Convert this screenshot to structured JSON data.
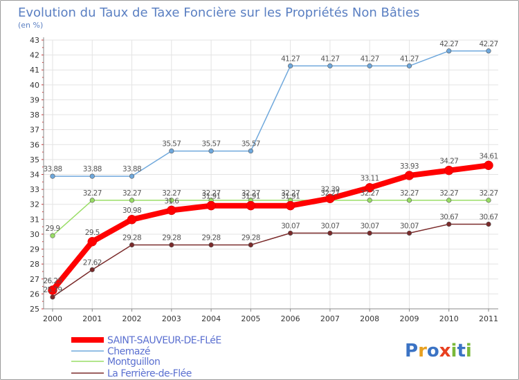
{
  "chart_data": {
    "type": "line",
    "title": "Evolution du Taux de Taxe Foncière sur les Propriétés Non Bâties",
    "subtitle": "(en %)",
    "x": [
      "2000",
      "2001",
      "2002",
      "2003",
      "2004",
      "2005",
      "2006",
      "2007",
      "2008",
      "2009",
      "2010",
      "2011"
    ],
    "ylim": [
      25,
      43
    ],
    "yticks": [
      25,
      26,
      27,
      28,
      29,
      30,
      31,
      32,
      33,
      34,
      35,
      36,
      37,
      38,
      39,
      40,
      41,
      42,
      43
    ],
    "grid": true,
    "legend_position": "bottom-left",
    "series": [
      {
        "name": "SAINT-SAUVEUR-DE-FLéE",
        "color": "#ff0000",
        "values": [
          26.25,
          29.5,
          30.98,
          31.6,
          31.91,
          31.91,
          31.91,
          32.39,
          33.11,
          33.93,
          34.27,
          34.61
        ],
        "labels": [
          "26.25",
          "29.5",
          "30.98",
          "31.6",
          "31.91",
          "31.91",
          "31.91",
          "32.39",
          "33.11",
          "33.93",
          "34.27",
          "34.61"
        ]
      },
      {
        "name": "Chemazé",
        "color": "#6fa8dc",
        "values": [
          33.88,
          33.88,
          33.88,
          35.57,
          35.57,
          35.57,
          41.27,
          41.27,
          41.27,
          41.27,
          42.27,
          42.27
        ],
        "labels": [
          "33.88",
          "33.88",
          "33.88",
          "35.57",
          "35.57",
          "35.57",
          "41.27",
          "41.27",
          "41.27",
          "41.27",
          "42.27",
          "42.27"
        ]
      },
      {
        "name": "Montguillon",
        "color": "#99dd66",
        "values": [
          29.9,
          32.27,
          32.27,
          32.27,
          32.27,
          32.27,
          32.27,
          32.27,
          32.27,
          32.27,
          32.27,
          32.27
        ],
        "labels": [
          "29.9",
          "32.27",
          "32.27",
          "32.27",
          "32.27",
          "32.27",
          "32.27",
          "32.27",
          "32.27",
          "32.27",
          "32.27",
          "32.27"
        ]
      },
      {
        "name": "La Ferrière-de-Flée",
        "color": "#7a2a2a",
        "values": [
          25.79,
          27.62,
          29.28,
          29.28,
          29.28,
          29.28,
          30.07,
          30.07,
          30.07,
          30.07,
          30.67,
          30.67
        ],
        "labels": [
          "25.79",
          "27.62",
          "29.28",
          "29.28",
          "29.28",
          "29.28",
          "30.07",
          "30.07",
          "30.07",
          "30.07",
          "30.67",
          "30.67"
        ]
      }
    ]
  },
  "logo": {
    "text": "Proxiti"
  }
}
